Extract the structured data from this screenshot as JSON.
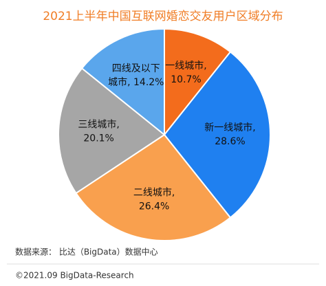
{
  "chart_data": {
    "type": "pie",
    "title": "2021上半年中国互联网婚恋交友用户区域分布",
    "values": [
      10.7,
      28.6,
      26.4,
      20.1,
      14.2
    ],
    "value_labels": [
      [
        "一线城市,",
        "10.7%"
      ],
      [
        "新一线城市,",
        "28.6%"
      ],
      [
        "二线城市,",
        "26.4%"
      ],
      [
        "三线城市,",
        "20.1%"
      ],
      [
        "四线及以下",
        "城市, 14.2%"
      ]
    ],
    "colors": [
      "#f36c1c",
      "#1f80f0",
      "#f9a04e",
      "#a6a6a6",
      "#5aa6ec"
    ],
    "source": "数据来源：  比达（BigData）数据中心",
    "copyright": "©2021.09 BigData-Research"
  }
}
